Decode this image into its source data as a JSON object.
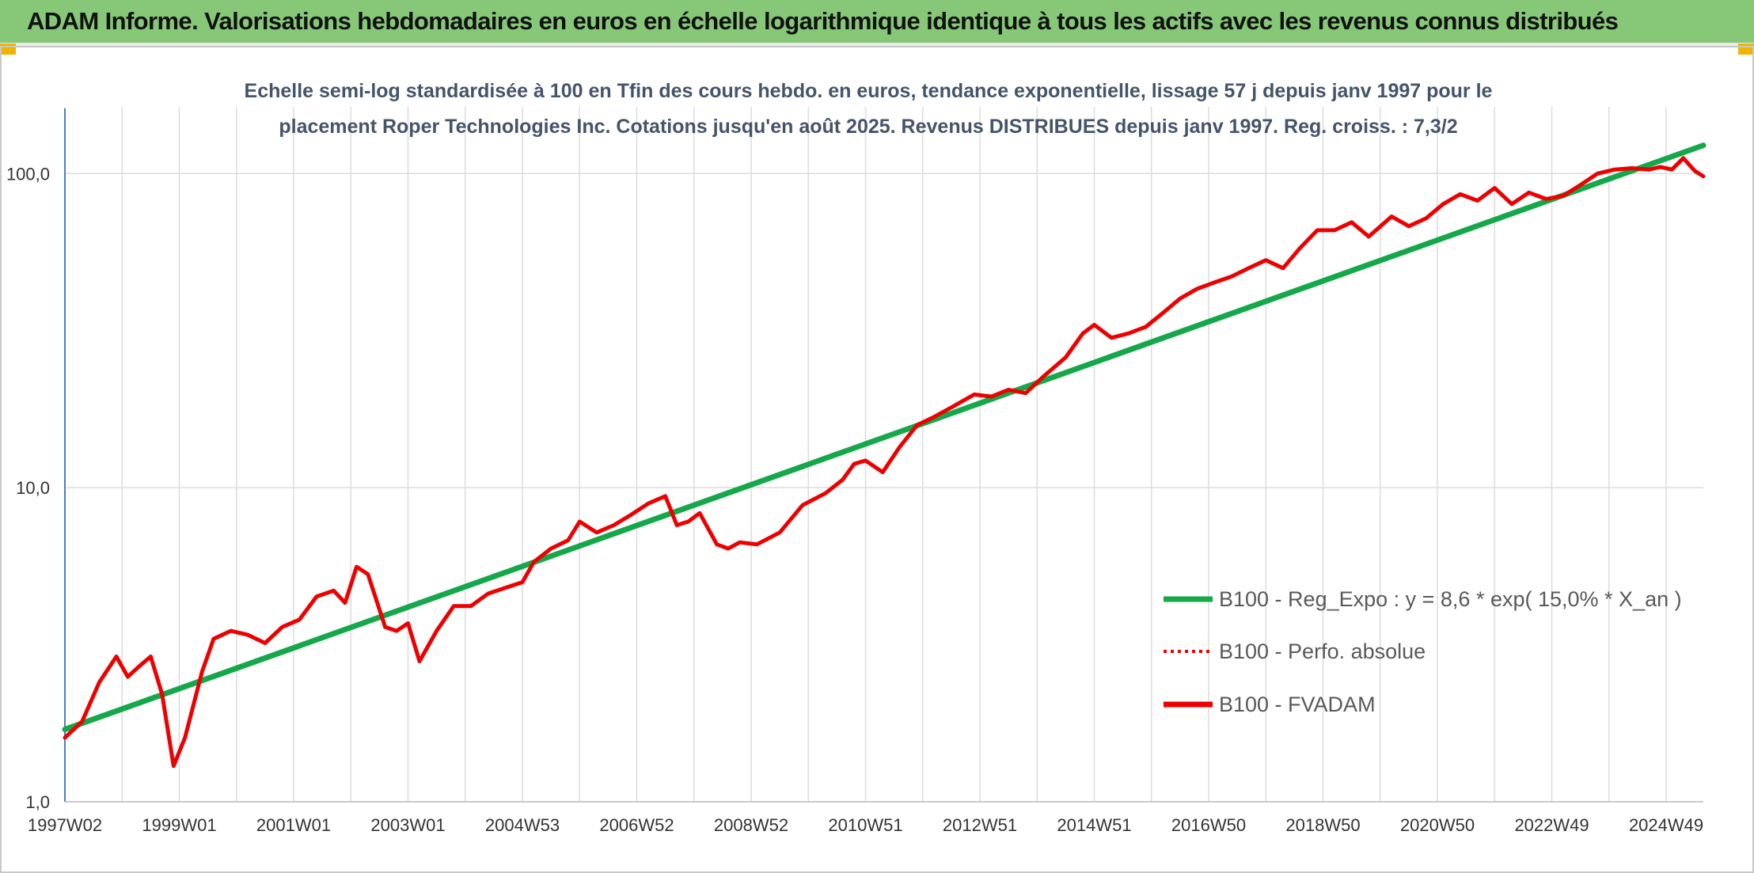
{
  "banner": {
    "title": "ADAM Informe. Valorisations hebdomadaires en euros en échelle logarithmique identique à tous les actifs avec les revenus connus distribués"
  },
  "colors": {
    "banner_bg": "#86c878",
    "corner": "#f2b300",
    "trend": "#14a84a",
    "fvadam": "#ee0000",
    "perfo": "#ee0000",
    "grid": "#dcdcdc",
    "axis": "#4f81bd",
    "title_text": "#44546a",
    "tick_text": "#333333"
  },
  "chart_data": {
    "type": "line",
    "title_lines": [
      "Echelle semi-log standardisée à 100 en Tfin des cours hebdo. en euros, tendance exponentielle, lissage 57 j depuis janv 1997 pour le",
      "placement Roper Technologies Inc. Cotations jusqu'en août 2025. Revenus DISTRIBUES depuis janv 1997. Reg. croiss. : 7,3/2"
    ],
    "y_scale": "log",
    "ylim": [
      1,
      180
    ],
    "y_ticks": [
      {
        "value": 1,
        "label": "1,0"
      },
      {
        "value": 10,
        "label": "10,0"
      },
      {
        "value": 100,
        "label": "100,0"
      }
    ],
    "x_range": [
      1997.0,
      2025.65
    ],
    "x_ticks": [
      {
        "x": 1997.0,
        "label": "1997W02"
      },
      {
        "x": 1999.0,
        "label": "1999W01"
      },
      {
        "x": 2001.0,
        "label": "2001W01"
      },
      {
        "x": 2003.0,
        "label": "2003W01"
      },
      {
        "x": 2005.0,
        "label": "2004W53"
      },
      {
        "x": 2007.0,
        "label": "2006W52"
      },
      {
        "x": 2009.0,
        "label": "2008W52"
      },
      {
        "x": 2011.0,
        "label": "2010W51"
      },
      {
        "x": 2013.0,
        "label": "2012W51"
      },
      {
        "x": 2015.0,
        "label": "2014W51"
      },
      {
        "x": 2017.0,
        "label": "2016W50"
      },
      {
        "x": 2019.0,
        "label": "2018W50"
      },
      {
        "x": 2021.0,
        "label": "2020W50"
      },
      {
        "x": 2023.0,
        "label": "2022W49"
      },
      {
        "x": 2025.0,
        "label": "2024W49"
      }
    ],
    "grid": true,
    "legend_position": "bottom-right",
    "series": [
      {
        "name": "B100 - Reg_Expo : y = 8,6 * exp( 15,0% *  X_an )",
        "style": "solid-green",
        "x": [
          1997.0,
          2025.65
        ],
        "y": [
          1.7,
          123.0
        ]
      },
      {
        "name": "B100 - Perfo. absolue",
        "style": "dotted-red",
        "x": [],
        "y": []
      },
      {
        "name": "B100 - FVADAM",
        "style": "solid-red",
        "x": [
          1997.0,
          1997.3,
          1997.6,
          1997.9,
          1998.1,
          1998.3,
          1998.5,
          1998.7,
          1998.9,
          1999.1,
          1999.4,
          1999.6,
          1999.9,
          2000.2,
          2000.5,
          2000.8,
          2001.1,
          2001.4,
          2001.7,
          2001.9,
          2002.1,
          2002.3,
          2002.6,
          2002.8,
          2003.0,
          2003.2,
          2003.5,
          2003.8,
          2004.1,
          2004.4,
          2004.7,
          2005.0,
          2005.2,
          2005.5,
          2005.8,
          2006.0,
          2006.3,
          2006.6,
          2006.9,
          2007.2,
          2007.5,
          2007.7,
          2007.9,
          2008.1,
          2008.4,
          2008.6,
          2008.8,
          2009.1,
          2009.5,
          2009.9,
          2010.3,
          2010.6,
          2010.8,
          2011.0,
          2011.3,
          2011.6,
          2011.9,
          2012.2,
          2012.5,
          2012.9,
          2013.2,
          2013.5,
          2013.8,
          2014.1,
          2014.5,
          2014.8,
          2015.0,
          2015.3,
          2015.6,
          2015.9,
          2016.2,
          2016.5,
          2016.8,
          2017.1,
          2017.4,
          2017.7,
          2018.0,
          2018.3,
          2018.6,
          2018.9,
          2019.2,
          2019.5,
          2019.8,
          2020.2,
          2020.5,
          2020.8,
          2021.1,
          2021.4,
          2021.7,
          2022.0,
          2022.3,
          2022.6,
          2022.9,
          2023.2,
          2023.5,
          2023.8,
          2024.1,
          2024.4,
          2024.7,
          2024.9,
          2025.1,
          2025.3,
          2025.5,
          2025.65
        ],
        "y": [
          1.6,
          1.8,
          2.4,
          2.9,
          2.5,
          2.7,
          2.9,
          2.2,
          1.3,
          1.6,
          2.6,
          3.3,
          3.5,
          3.4,
          3.2,
          3.6,
          3.8,
          4.5,
          4.7,
          4.3,
          5.6,
          5.3,
          3.6,
          3.5,
          3.7,
          2.8,
          3.5,
          4.2,
          4.2,
          4.6,
          4.8,
          5.0,
          5.8,
          6.4,
          6.8,
          7.8,
          7.2,
          7.6,
          8.2,
          8.9,
          9.4,
          7.6,
          7.8,
          8.3,
          6.6,
          6.4,
          6.7,
          6.6,
          7.2,
          8.8,
          9.6,
          10.6,
          11.9,
          12.2,
          11.2,
          13.5,
          15.8,
          16.8,
          18.0,
          19.8,
          19.5,
          20.5,
          20.0,
          22.5,
          26.0,
          31.0,
          33.0,
          30.0,
          31.0,
          32.5,
          36.0,
          40.0,
          43.0,
          45.0,
          47.0,
          50.0,
          53.0,
          50.0,
          58.0,
          66.0,
          66.0,
          70.0,
          63.0,
          73.0,
          68.0,
          72.0,
          80.0,
          86.0,
          82.0,
          90.0,
          80.0,
          87.0,
          83.0,
          85.0,
          92.0,
          100.0,
          103.0,
          104.0,
          103.0,
          105.0,
          103.0,
          112.0,
          102.0,
          98.0
        ]
      }
    ]
  }
}
